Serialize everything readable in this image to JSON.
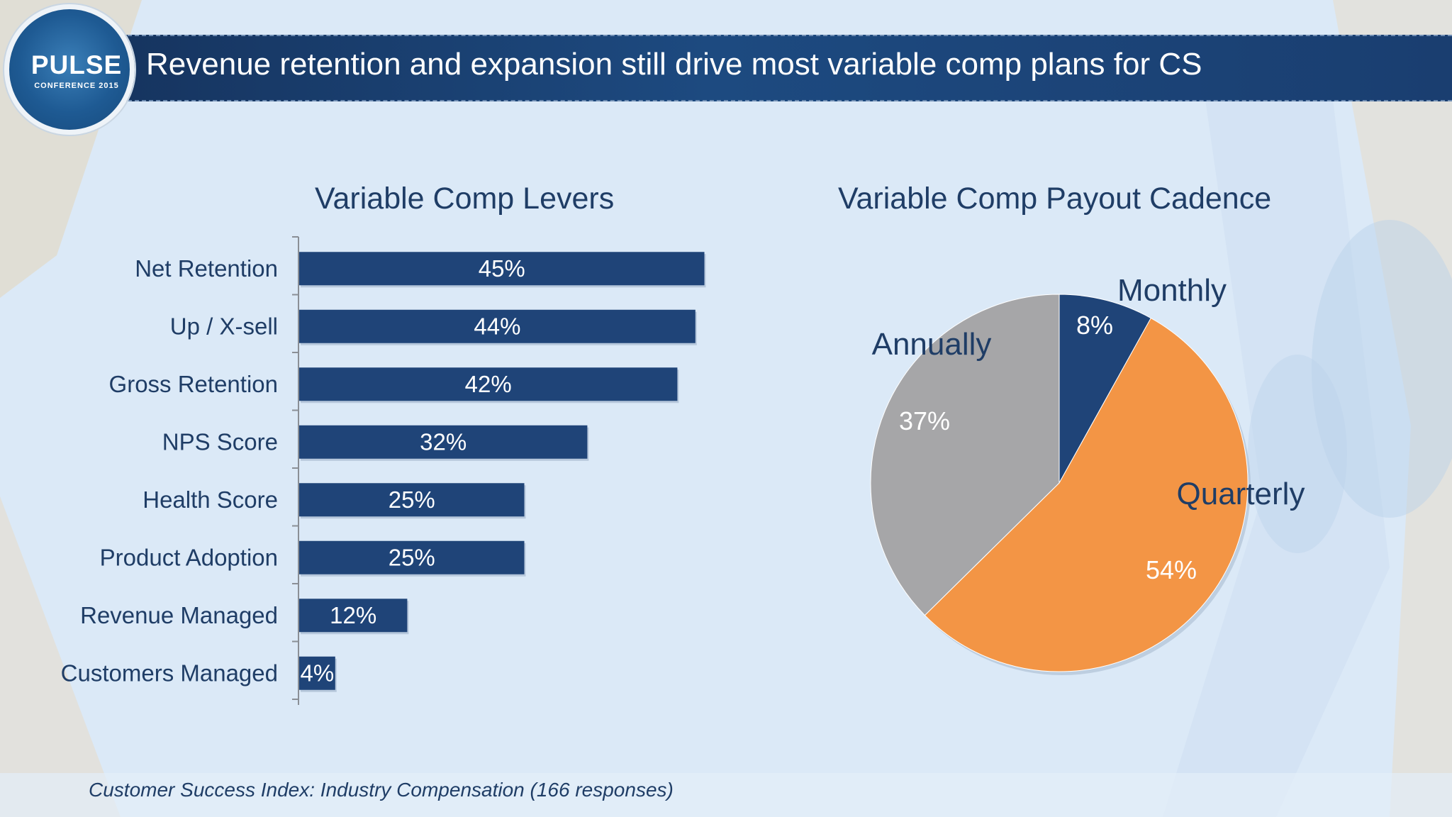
{
  "header": {
    "title": "Revenue retention and expansion still drive most variable comp plans for CS",
    "logo_word": "PULSE",
    "logo_sub": "CONFERENCE 2015"
  },
  "footnote": "Customer Success Index: Industry Compensation (166 responses)",
  "colors": {
    "bar": "#1f4478",
    "monthly": "#1f4478",
    "quarterly": "#f39545",
    "annually": "#a6a6a8",
    "text": "#1f3d66"
  },
  "chart_data": [
    {
      "type": "bar",
      "orientation": "horizontal",
      "title": "Variable Comp Levers",
      "categories": [
        "Net Retention",
        "Up / X-sell",
        "Gross Retention",
        "NPS Score",
        "Health Score",
        "Product Adoption",
        "Revenue Managed",
        "Customers Managed"
      ],
      "values": [
        45,
        44,
        42,
        32,
        25,
        25,
        12,
        4
      ],
      "data_labels": [
        "45%",
        "44%",
        "42%",
        "32%",
        "25%",
        "25%",
        "12%",
        "4%"
      ],
      "unit": "%",
      "xlim": [
        0,
        50
      ],
      "grid": false
    },
    {
      "type": "pie",
      "title": "Variable Comp Payout Cadence",
      "slices": [
        {
          "label": "Monthly",
          "value": 8,
          "data_label": "8%"
        },
        {
          "label": "Quarterly",
          "value": 54,
          "data_label": "54%"
        },
        {
          "label": "Annually",
          "value": 37,
          "data_label": "37%"
        }
      ]
    }
  ]
}
